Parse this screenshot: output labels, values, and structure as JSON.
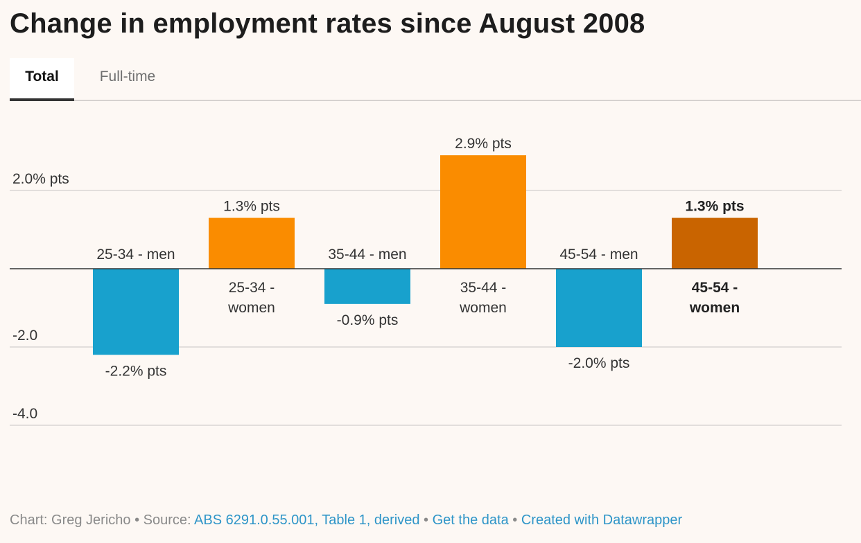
{
  "title": "Change in employment rates since August 2008",
  "tabs": [
    {
      "label": "Total",
      "active": true
    },
    {
      "label": "Full-time",
      "active": false
    }
  ],
  "chart_data": {
    "type": "bar",
    "title": "Change in employment rates since August 2008",
    "unit": "% pts",
    "ylim": [
      -4,
      3.5
    ],
    "gridlines": [
      2,
      -2,
      -4
    ],
    "tick_labels": [
      "2.0% pts",
      "-2.0",
      "-4.0"
    ],
    "bars": [
      {
        "category": "25-34 - men",
        "value": -2.2,
        "value_label": "-2.2% pts",
        "color": "#18a1cd",
        "highlight": false
      },
      {
        "category": "25-34 - women",
        "value": 1.3,
        "value_label": "1.3% pts",
        "color": "#fa8c00",
        "highlight": false
      },
      {
        "category": "35-44 - men",
        "value": -0.9,
        "value_label": "-0.9% pts",
        "color": "#18a1cd",
        "highlight": false
      },
      {
        "category": "35-44 - women",
        "value": 2.9,
        "value_label": "2.9% pts",
        "color": "#fa8c00",
        "highlight": false
      },
      {
        "category": "45-54 - men",
        "value": -2.0,
        "value_label": "-2.0% pts",
        "color": "#18a1cd",
        "highlight": false
      },
      {
        "category": "45-54 - women",
        "value": 1.3,
        "value_label": "1.3% pts",
        "color": "#c96400",
        "highlight": true
      }
    ]
  },
  "footer": {
    "chart_label": "Chart: Greg Jericho",
    "source_prefix": "Source:",
    "source_link": "ABS 6291.0.55.001, Table 1, derived",
    "get_data": "Get the data",
    "created_with": "Created with Datawrapper",
    "separator": "•"
  }
}
